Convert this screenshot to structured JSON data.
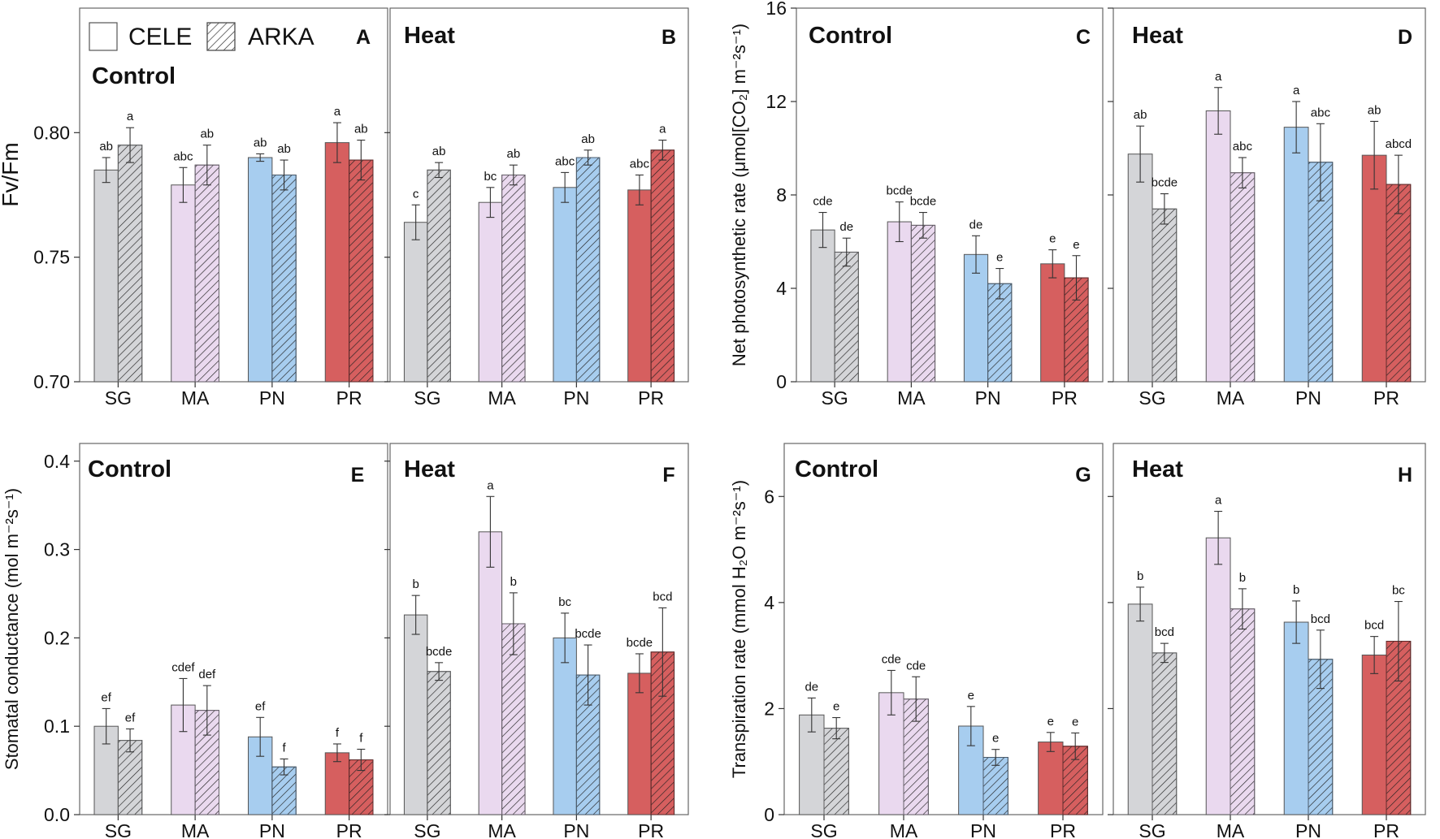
{
  "figure": {
    "categories": [
      "SG",
      "MA",
      "PN",
      "PR"
    ],
    "legend": {
      "cele": "CELE",
      "arka": "ARKA"
    },
    "colors": {
      "SG": "#d4d5d8",
      "MA": "#ead9ef",
      "PN": "#a7cdef",
      "PR": "#d65f5f",
      "edge": "#333333",
      "axis": "#666666"
    }
  },
  "chart_data": [
    {
      "id": "A",
      "type": "bar",
      "title": "Control",
      "letter": "A",
      "ylabel": "Fv/Fm",
      "ylim": [
        0.7,
        0.85
      ],
      "yticks": [
        0.7,
        0.75,
        0.8
      ],
      "yticklabels": [
        "0.70",
        "0.75",
        "0.80"
      ],
      "categories": [
        "SG",
        "MA",
        "PN",
        "PR"
      ],
      "series": [
        {
          "name": "CELE",
          "values": [
            0.785,
            0.779,
            0.79,
            0.796
          ],
          "errors": [
            0.005,
            0.007,
            0.0015,
            0.008
          ],
          "letters": [
            "ab",
            "abc",
            "ab",
            "a"
          ]
        },
        {
          "name": "ARKA",
          "values": [
            0.795,
            0.787,
            0.783,
            0.789
          ],
          "errors": [
            0.007,
            0.008,
            0.006,
            0.008
          ],
          "letters": [
            "a",
            "ab",
            "ab",
            "ab"
          ]
        }
      ]
    },
    {
      "id": "B",
      "type": "bar",
      "title": "Heat",
      "letter": "B",
      "ylabel": "",
      "ylim": [
        0.7,
        0.85
      ],
      "yticks": [
        0.7,
        0.75,
        0.8
      ],
      "yticklabels": [],
      "categories": [
        "SG",
        "MA",
        "PN",
        "PR"
      ],
      "series": [
        {
          "name": "CELE",
          "values": [
            0.764,
            0.772,
            0.778,
            0.777
          ],
          "errors": [
            0.007,
            0.006,
            0.006,
            0.006
          ],
          "letters": [
            "c",
            "bc",
            "abc",
            "abc"
          ]
        },
        {
          "name": "ARKA",
          "values": [
            0.785,
            0.783,
            0.79,
            0.793
          ],
          "errors": [
            0.003,
            0.004,
            0.003,
            0.004
          ],
          "letters": [
            "ab",
            "ab",
            "ab",
            "a"
          ]
        }
      ]
    },
    {
      "id": "C",
      "type": "bar",
      "title": "Control",
      "letter": "C",
      "ylabel": "Net photosynthetic rate (μmol[CO₂] m⁻²s⁻¹)",
      "ylim": [
        0,
        16
      ],
      "yticks": [
        0,
        4,
        8,
        12,
        16
      ],
      "yticklabels": [
        "0",
        "4",
        "8",
        "12",
        "16"
      ],
      "categories": [
        "SG",
        "MA",
        "PN",
        "PR"
      ],
      "series": [
        {
          "name": "CELE",
          "values": [
            6.5,
            6.85,
            5.45,
            5.05
          ],
          "errors": [
            0.75,
            0.85,
            0.8,
            0.6
          ],
          "letters": [
            "cde",
            "bcde",
            "de",
            "e"
          ]
        },
        {
          "name": "ARKA",
          "values": [
            5.55,
            6.7,
            4.2,
            4.45
          ],
          "errors": [
            0.6,
            0.55,
            0.65,
            0.95
          ],
          "letters": [
            "de",
            "bcde",
            "e",
            "e"
          ]
        }
      ]
    },
    {
      "id": "D",
      "type": "bar",
      "title": "Heat",
      "letter": "D",
      "ylabel": "",
      "ylim": [
        0,
        16
      ],
      "yticks": [
        0,
        4,
        8,
        12,
        16
      ],
      "yticklabels": [],
      "categories": [
        "SG",
        "MA",
        "PN",
        "PR"
      ],
      "series": [
        {
          "name": "CELE",
          "values": [
            9.75,
            11.6,
            10.9,
            9.7
          ],
          "errors": [
            1.2,
            1.0,
            1.1,
            1.45
          ],
          "letters": [
            "ab",
            "a",
            "a",
            "ab"
          ]
        },
        {
          "name": "ARKA",
          "values": [
            7.4,
            8.95,
            9.4,
            8.45
          ],
          "errors": [
            0.65,
            0.65,
            1.65,
            1.25
          ],
          "letters": [
            "bcde",
            "abc",
            "abc",
            "abcd"
          ]
        }
      ]
    },
    {
      "id": "E",
      "type": "bar",
      "title": "Control",
      "letter": "E",
      "ylabel": "Stomatal conductance (mol m⁻²s⁻¹)",
      "ylim": [
        0,
        0.42
      ],
      "yticks": [
        0,
        0.1,
        0.2,
        0.3,
        0.4
      ],
      "yticklabels": [
        "0.0",
        "0.1",
        "0.2",
        "0.3",
        "0.4"
      ],
      "categories": [
        "SG",
        "MA",
        "PN",
        "PR"
      ],
      "series": [
        {
          "name": "CELE",
          "values": [
            0.1,
            0.124,
            0.088,
            0.07
          ],
          "errors": [
            0.02,
            0.03,
            0.022,
            0.01
          ],
          "letters": [
            "ef",
            "cdef",
            "ef",
            "f"
          ]
        },
        {
          "name": "ARKA",
          "values": [
            0.084,
            0.118,
            0.054,
            0.062
          ],
          "errors": [
            0.013,
            0.028,
            0.009,
            0.012
          ],
          "letters": [
            "ef",
            "def",
            "f",
            "f"
          ]
        }
      ]
    },
    {
      "id": "F",
      "type": "bar",
      "title": "Heat",
      "letter": "F",
      "ylabel": "",
      "ylim": [
        0,
        0.42
      ],
      "yticks": [
        0,
        0.1,
        0.2,
        0.3,
        0.4
      ],
      "yticklabels": [],
      "categories": [
        "SG",
        "MA",
        "PN",
        "PR"
      ],
      "series": [
        {
          "name": "CELE",
          "values": [
            0.226,
            0.32,
            0.2,
            0.16
          ],
          "errors": [
            0.022,
            0.04,
            0.028,
            0.022
          ],
          "letters": [
            "b",
            "a",
            "bc",
            "bcde"
          ]
        },
        {
          "name": "ARKA",
          "values": [
            0.162,
            0.216,
            0.158,
            0.184
          ],
          "errors": [
            0.01,
            0.035,
            0.034,
            0.05
          ],
          "letters": [
            "bcde",
            "b",
            "bcde",
            "bcd"
          ]
        }
      ]
    },
    {
      "id": "G",
      "type": "bar",
      "title": "Control",
      "letter": "G",
      "ylabel": "Transpiration rate (mmol H₂O m⁻²s⁻¹)",
      "ylim": [
        0,
        7
      ],
      "yticks": [
        0,
        2,
        4,
        6
      ],
      "yticklabels": [
        "0",
        "2",
        "4",
        "6"
      ],
      "categories": [
        "SG",
        "MA",
        "PN",
        "PR"
      ],
      "series": [
        {
          "name": "CELE",
          "values": [
            1.88,
            2.3,
            1.67,
            1.37
          ],
          "errors": [
            0.32,
            0.42,
            0.37,
            0.18
          ],
          "letters": [
            "de",
            "cde",
            "e",
            "e"
          ]
        },
        {
          "name": "ARKA",
          "values": [
            1.63,
            2.18,
            1.08,
            1.29
          ],
          "errors": [
            0.2,
            0.42,
            0.15,
            0.25
          ],
          "letters": [
            "e",
            "cde",
            "e",
            "e"
          ]
        }
      ]
    },
    {
      "id": "H",
      "type": "bar",
      "title": "Heat",
      "letter": "H",
      "ylabel": "",
      "ylim": [
        0,
        7
      ],
      "yticks": [
        0,
        2,
        4,
        6
      ],
      "yticklabels": [],
      "categories": [
        "SG",
        "MA",
        "PN",
        "PR"
      ],
      "series": [
        {
          "name": "CELE",
          "values": [
            3.97,
            5.22,
            3.63,
            3.01
          ],
          "errors": [
            0.32,
            0.5,
            0.4,
            0.35
          ],
          "letters": [
            "b",
            "a",
            "b",
            "bcd"
          ]
        },
        {
          "name": "ARKA",
          "values": [
            3.05,
            3.88,
            2.93,
            3.27
          ],
          "errors": [
            0.18,
            0.38,
            0.55,
            0.75
          ],
          "letters": [
            "bcd",
            "b",
            "bcd",
            "bc"
          ]
        }
      ]
    }
  ]
}
